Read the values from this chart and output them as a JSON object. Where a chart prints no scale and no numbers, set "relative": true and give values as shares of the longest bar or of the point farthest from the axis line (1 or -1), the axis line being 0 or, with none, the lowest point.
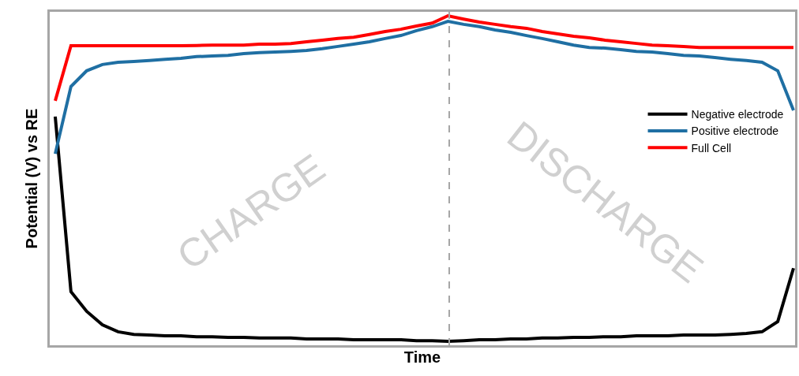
{
  "chart_data": {
    "type": "line",
    "relative": true,
    "xlabel": "Time",
    "ylabel": "Potential (V) vs RE",
    "categories": [
      null,
      null,
      null,
      null,
      null,
      null,
      null,
      null,
      null,
      null,
      null,
      null,
      null,
      null,
      null,
      null,
      null,
      null,
      null,
      null,
      null,
      null,
      null,
      null,
      null,
      null,
      null,
      null,
      null,
      null,
      null,
      null,
      null,
      null,
      null,
      null,
      null,
      null,
      null,
      null,
      null,
      null,
      null,
      null,
      null,
      null,
      null,
      null
    ],
    "series": [
      {
        "name": "Negative electrode",
        "color": "#000000",
        "values": [
          0.694,
          0.163,
          0.103,
          0.062,
          0.041,
          0.033,
          0.031,
          0.029,
          0.029,
          0.026,
          0.026,
          0.024,
          0.024,
          0.022,
          0.022,
          0.022,
          0.019,
          0.019,
          0.019,
          0.017,
          0.017,
          0.017,
          0.017,
          0.014,
          0.014,
          0.012,
          0.014,
          0.017,
          0.017,
          0.019,
          0.019,
          0.022,
          0.022,
          0.024,
          0.024,
          0.026,
          0.026,
          0.029,
          0.029,
          0.029,
          0.031,
          0.031,
          0.031,
          0.033,
          0.036,
          0.041,
          0.072,
          0.234
        ]
      },
      {
        "name": "Positive electrode",
        "color": "#1f6fa3",
        "values": [
          0.581,
          0.785,
          0.833,
          0.852,
          0.859,
          0.861,
          0.864,
          0.868,
          0.871,
          0.876,
          0.878,
          0.88,
          0.885,
          0.888,
          0.89,
          0.892,
          0.895,
          0.9,
          0.907,
          0.914,
          0.921,
          0.931,
          0.94,
          0.955,
          0.967,
          0.983,
          0.974,
          0.967,
          0.957,
          0.95,
          0.94,
          0.931,
          0.921,
          0.911,
          0.904,
          0.902,
          0.897,
          0.892,
          0.89,
          0.885,
          0.88,
          0.878,
          0.873,
          0.868,
          0.864,
          0.859,
          0.833,
          0.713
        ]
      },
      {
        "name": "Full Cell",
        "color": "#ff0000",
        "values": [
          0.742,
          0.909,
          0.909,
          0.909,
          0.909,
          0.909,
          0.909,
          0.909,
          0.909,
          0.91,
          0.911,
          0.911,
          0.911,
          0.914,
          0.914,
          0.916,
          0.921,
          0.926,
          0.931,
          0.935,
          0.943,
          0.952,
          0.959,
          0.969,
          0.978,
          1.0,
          0.99,
          0.981,
          0.974,
          0.967,
          0.962,
          0.952,
          0.945,
          0.938,
          0.933,
          0.926,
          0.921,
          0.916,
          0.911,
          0.909,
          0.907,
          0.904,
          0.904,
          0.904,
          0.904,
          0.904,
          0.904,
          0.904
        ]
      }
    ],
    "annotations": [
      "CHARGE",
      "DISCHARGE"
    ],
    "legend": "top right",
    "marker": "none",
    "line_style": "solid"
  }
}
